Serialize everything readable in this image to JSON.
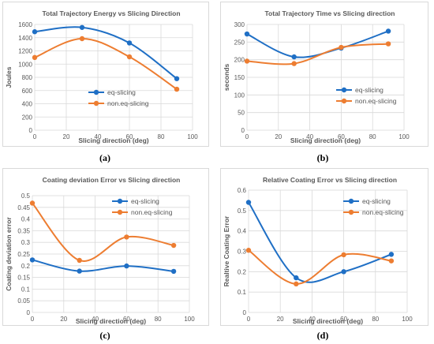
{
  "colors": {
    "eq": "#1f6fc5",
    "noneq": "#ed7d31",
    "grid": "#d9d9d9",
    "tick_text": "#595959",
    "title_text": "#595959",
    "axis_title": "#595959"
  },
  "chart_data": [
    {
      "label": "(a)",
      "type": "line",
      "title": "Total Trajectory Energy vs Slicing Direction",
      "xlabel": "Slicing direction (deg)",
      "ylabel": "Joules",
      "xlim": [
        0,
        100
      ],
      "xticks": [
        0,
        20,
        40,
        60,
        80,
        100
      ],
      "ylim": [
        0,
        1600
      ],
      "yticks": [
        0,
        200,
        400,
        600,
        800,
        1000,
        1200,
        1400,
        1600
      ],
      "grid": true,
      "legend": "center",
      "series": [
        {
          "name": "eq-slicing",
          "x": [
            0,
            30,
            60,
            90
          ],
          "y": [
            1490,
            1555,
            1320,
            780
          ]
        },
        {
          "name": "non.eq-slicing",
          "x": [
            0,
            30,
            60,
            90
          ],
          "y": [
            1100,
            1385,
            1110,
            620
          ]
        }
      ]
    },
    {
      "label": "(b)",
      "type": "line",
      "title": "Total Trajectory Time vs Slicing direction",
      "xlabel": "Slicing direction (deg)",
      "ylabel": "seconds",
      "xlim": [
        0,
        100
      ],
      "xticks": [
        0,
        20,
        40,
        60,
        80,
        100
      ],
      "ylim": [
        0,
        300
      ],
      "yticks": [
        0,
        50,
        100,
        150,
        200,
        250,
        300
      ],
      "grid": true,
      "legend": "right",
      "series": [
        {
          "name": "eq-slicing",
          "x": [
            0,
            30,
            60,
            90
          ],
          "y": [
            273,
            208,
            233,
            281
          ]
        },
        {
          "name": "non.eq-slicing",
          "x": [
            0,
            30,
            60,
            90
          ],
          "y": [
            196,
            189,
            235,
            245
          ]
        }
      ]
    },
    {
      "label": "(c)",
      "type": "line",
      "title": "Coating deviation Error vs Slicing direction",
      "xlabel": "Slicing direction (deg)",
      "ylabel": "Coating deviation error",
      "xlim": [
        0,
        100
      ],
      "xticks": [
        0,
        20,
        40,
        60,
        80,
        100
      ],
      "ylim": [
        0,
        0.5
      ],
      "yticks": [
        0,
        0.05,
        0.1,
        0.15,
        0.2,
        0.25,
        0.3,
        0.35,
        0.4,
        0.45,
        0.5
      ],
      "grid": true,
      "legend": "top-right",
      "series": [
        {
          "name": "eq-slicing",
          "x": [
            0,
            30,
            60,
            90
          ],
          "y": [
            0.225,
            0.177,
            0.199,
            0.176
          ]
        },
        {
          "name": "non.eq-slicing",
          "x": [
            0,
            30,
            60,
            90
          ],
          "y": [
            0.468,
            0.223,
            0.323,
            0.287
          ]
        }
      ]
    },
    {
      "label": "(d)",
      "type": "line",
      "title": "Relative Coating Error vs Slicing direction",
      "xlabel": "Slicing direction (deg)",
      "ylabel": "Realtive Coating Error",
      "xlim": [
        0,
        100
      ],
      "xticks": [
        0,
        20,
        40,
        60,
        80,
        100
      ],
      "ylim": [
        0,
        0.6
      ],
      "yticks": [
        0,
        0.1,
        0.2,
        0.3,
        0.4,
        0.5,
        0.6
      ],
      "grid": true,
      "legend": "top-right",
      "series": [
        {
          "name": "eq-slicing",
          "x": [
            0,
            30,
            60,
            90
          ],
          "y": [
            0.54,
            0.17,
            0.2,
            0.285
          ]
        },
        {
          "name": "non.eq-slicing",
          "x": [
            0,
            30,
            60,
            90
          ],
          "y": [
            0.305,
            0.14,
            0.283,
            0.253
          ]
        }
      ]
    }
  ]
}
